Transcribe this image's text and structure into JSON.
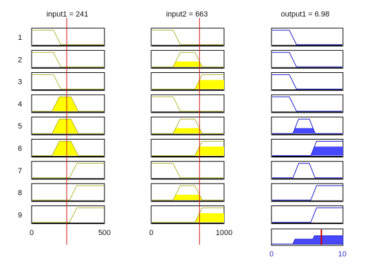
{
  "columns": [
    {
      "title": "input1 = 241",
      "axis_min": "0",
      "axis_max": "500"
    },
    {
      "title": "input2 = 663",
      "axis_min": "0",
      "axis_max": "1000"
    },
    {
      "title": "output1 = 6.98",
      "axis_min": "0",
      "axis_max": "10"
    }
  ],
  "rule_numbers": [
    "1",
    "2",
    "3",
    "4",
    "5",
    "6",
    "7",
    "8",
    "9"
  ],
  "inputs": [
    {
      "name": "input1",
      "value": 241,
      "range": [
        0,
        500
      ]
    },
    {
      "name": "input2",
      "value": 663,
      "range": [
        0,
        1000
      ]
    }
  ],
  "output": {
    "name": "output1",
    "value": 6.98,
    "range": [
      0,
      10
    ]
  },
  "membership_functions": {
    "input1": {
      "low": [
        0,
        0,
        150,
        200
      ],
      "mid": [
        140,
        190,
        270,
        320
      ],
      "high": [
        260,
        310,
        500,
        500
      ]
    },
    "input2": {
      "low": [
        0,
        0,
        300,
        400
      ],
      "mid": [
        300,
        400,
        600,
        700
      ],
      "high": [
        600,
        700,
        1000,
        1000
      ]
    },
    "output1": {
      "low": [
        0,
        0,
        2.5,
        3.5
      ],
      "mid": [
        3,
        3.8,
        5.3,
        6.1
      ],
      "high": [
        5.5,
        6.3,
        10,
        10
      ]
    }
  },
  "rules": [
    {
      "rule": "1",
      "input1": "low",
      "input2": "low",
      "output1": "low"
    },
    {
      "rule": "2",
      "input1": "low",
      "input2": "mid",
      "output1": "low"
    },
    {
      "rule": "3",
      "input1": "low",
      "input2": "high",
      "output1": "low"
    },
    {
      "rule": "4",
      "input1": "mid",
      "input2": "low",
      "output1": "low"
    },
    {
      "rule": "5",
      "input1": "mid",
      "input2": "mid",
      "output1": "mid"
    },
    {
      "rule": "6",
      "input1": "mid",
      "input2": "high",
      "output1": "high"
    },
    {
      "rule": "7",
      "input1": "high",
      "input2": "low",
      "output1": "mid"
    },
    {
      "rule": "8",
      "input1": "high",
      "input2": "mid",
      "output1": "high"
    },
    {
      "rule": "9",
      "input1": "high",
      "input2": "high",
      "output1": "high"
    }
  ],
  "colors": {
    "input_mf_line": "#b5b53a",
    "input_fill": "#ffff00",
    "output_mf_line": "#1c1cc8",
    "output_fill": "#4848ff",
    "cursor_line": "#cc1111",
    "aggregate_cursor": "#cc0000",
    "output_axis_text": "#2b2bcc",
    "background": "#ffffff"
  }
}
